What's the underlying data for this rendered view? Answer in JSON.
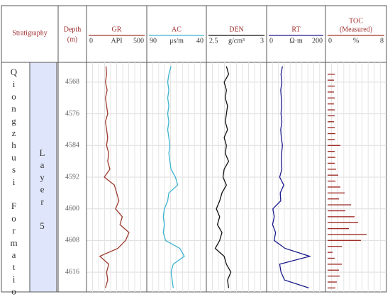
{
  "headers": {
    "stratigraphy": "Stratigraphy",
    "depth": "Depth",
    "depth_unit": "(m)"
  },
  "stratigraphy": {
    "formation": "Qiongzhusi Formation",
    "layer": "Layer 5"
  },
  "chart_data": {
    "type": "well-log",
    "ylim": [
      4563,
      4621
    ],
    "yticks": [
      4568,
      4576,
      4584,
      4592,
      4600,
      4608,
      4616
    ],
    "grid": true,
    "depth": [
      4564,
      4566,
      4568,
      4570,
      4572,
      4574,
      4576,
      4578,
      4580,
      4582,
      4584,
      4586,
      4588,
      4590,
      4592,
      4594,
      4596,
      4598,
      4600,
      4602,
      4604,
      4606,
      4608,
      4610,
      4612,
      4614,
      4616,
      4618,
      4620
    ],
    "tracks": [
      {
        "type": "line",
        "title": "GR",
        "unit": "API",
        "color": "#9b3b2e",
        "xlim": [
          0,
          500
        ],
        "values": [
          155,
          160,
          150,
          165,
          150,
          160,
          170,
          150,
          160,
          170,
          160,
          180,
          170,
          190,
          140,
          230,
          250,
          270,
          240,
          300,
          280,
          360,
          330,
          260,
          100,
          180,
          160,
          170,
          150
        ]
      },
      {
        "type": "line",
        "title": "AC",
        "unit": "μs/m",
        "color": "#3cb4d0",
        "xlim": [
          90,
          40
        ],
        "values": [
          70,
          72,
          73,
          72,
          73,
          72,
          73,
          72,
          73,
          72,
          71,
          72,
          71,
          70,
          66,
          64,
          72,
          73,
          76,
          77,
          76,
          77,
          75,
          62,
          58,
          68,
          70,
          69,
          68
        ]
      },
      {
        "type": "line",
        "title": "DEN",
        "unit": "g/cm³",
        "color": "#111111",
        "xlim": [
          2.5,
          3
        ],
        "values": [
          2.66,
          2.68,
          2.64,
          2.66,
          2.65,
          2.67,
          2.66,
          2.65,
          2.67,
          2.64,
          2.66,
          2.65,
          2.68,
          2.64,
          2.63,
          2.66,
          2.62,
          2.6,
          2.57,
          2.6,
          2.58,
          2.62,
          2.6,
          2.56,
          2.64,
          2.66,
          2.7,
          2.67,
          2.68
        ]
      },
      {
        "type": "line",
        "title": "RT",
        "unit": "Ω·m",
        "color": "#1a1a8c",
        "xlim": [
          0,
          200
        ],
        "values": [
          50,
          45,
          48,
          44,
          46,
          47,
          45,
          48,
          44,
          46,
          50,
          47,
          46,
          48,
          40,
          55,
          42,
          44,
          15,
          20,
          14,
          25,
          20,
          60,
          150,
          40,
          45,
          58,
          147
        ]
      },
      {
        "type": "bar",
        "title": "TOC",
        "subtitle": "(Measured)",
        "unit": "%",
        "color": "#a0302a",
        "xlim": [
          0,
          8
        ],
        "depths": [
          4566,
          4567.5,
          4569,
          4570.5,
          4572,
          4573.5,
          4575,
          4576.5,
          4578,
          4579.5,
          4581,
          4582.5,
          4584,
          4585.5,
          4587,
          4588.5,
          4590,
          4591.5,
          4593,
          4594.5,
          4596,
          4597.5,
          4599,
          4600.5,
          4602,
          4603.5,
          4605,
          4606.5,
          4608,
          4609.5,
          4611,
          4612.5,
          4614,
          4615.5,
          4617,
          4618.5,
          4620
        ],
        "values": [
          1.0,
          0.9,
          1.0,
          0.9,
          1.0,
          0.9,
          1.0,
          1.0,
          0.9,
          1.0,
          1.1,
          1.0,
          1.8,
          1.0,
          1.1,
          1.0,
          1.2,
          1.5,
          1.1,
          1.8,
          2.4,
          1.6,
          3.3,
          2.5,
          3.8,
          4.3,
          3.0,
          5.5,
          4.7,
          2.0,
          0.7,
          1.0,
          2.0,
          1.6,
          1.7,
          1.3,
          1.1
        ]
      }
    ]
  }
}
